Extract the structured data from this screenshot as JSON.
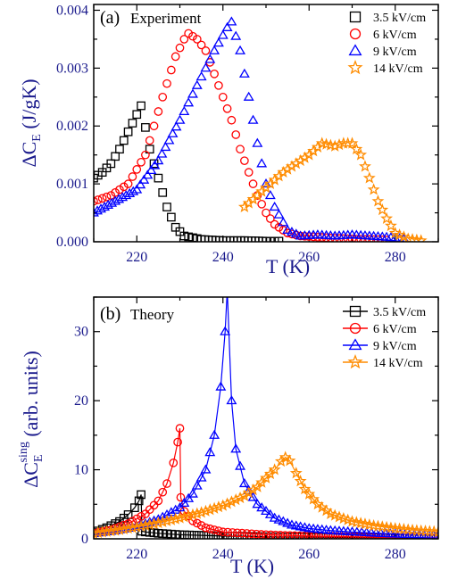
{
  "colors": {
    "axis": "#000000",
    "tick_label": "#1a1a8c",
    "axis_label": "#1a1a8c",
    "s_3_5": "#000000",
    "s_6": "#ff0000",
    "s_9": "#0000ff",
    "s_14": "#ff8c00"
  },
  "chart_data": [
    {
      "type": "scatter",
      "panel_label": "(a)",
      "title": "Experiment",
      "xlabel": "T (K)",
      "ylabel": "ΔC_E (J/gK)",
      "ylabel_main": "ΔC",
      "ylabel_sub": "E",
      "ylabel_rest": " (J/gK)",
      "xlim": [
        210,
        290
      ],
      "ylim": [
        0,
        0.0041
      ],
      "xticks": [
        220,
        240,
        260,
        280
      ],
      "xtick_labels": [
        "220",
        "240",
        "260",
        "280"
      ],
      "yticks": [
        0,
        0.001,
        0.002,
        0.003,
        0.004
      ],
      "ytick_labels": [
        "0.000",
        "0.001",
        "0.002",
        "0.003",
        "0.004"
      ],
      "grid": false,
      "legend_position": "top-right",
      "series": [
        {
          "name": "3.5 kV/cm",
          "marker": "square",
          "color": "#000000",
          "x": [
            210,
            212,
            214,
            216,
            218,
            220,
            221,
            223,
            225,
            227,
            229,
            231,
            235,
            240,
            245,
            250,
            253
          ],
          "y": [
            0.0011,
            0.0012,
            0.00135,
            0.0016,
            0.0019,
            0.0022,
            0.00235,
            0.0016,
            0.0011,
            0.0006,
            0.00025,
            0.0001,
            4e-05,
            2e-05,
            2e-05,
            1e-05,
            1e-05
          ]
        },
        {
          "name": "6 kV/cm",
          "marker": "circle",
          "color": "#ff0000",
          "x": [
            210,
            214,
            218,
            222,
            226,
            229,
            231,
            232,
            234,
            236,
            238,
            240,
            242,
            244,
            246,
            248,
            250,
            252,
            255,
            258,
            262,
            266,
            270,
            274,
            278
          ],
          "y": [
            0.0007,
            0.0008,
            0.001,
            0.0015,
            0.0025,
            0.0032,
            0.0035,
            0.0036,
            0.0035,
            0.0033,
            0.0029,
            0.0025,
            0.0021,
            0.0016,
            0.0012,
            0.0008,
            0.0005,
            0.0003,
            0.00015,
            0.0001,
            8e-05,
            6e-05,
            5e-05,
            4e-05,
            3e-05
          ]
        },
        {
          "name": "9 kV/cm",
          "marker": "triangle",
          "color": "#0000ff",
          "x": [
            210,
            215,
            220,
            225,
            230,
            234,
            238,
            241,
            242,
            244,
            246,
            248,
            250,
            252,
            255,
            258,
            262,
            266,
            270,
            274,
            278,
            282
          ],
          "y": [
            0.0005,
            0.0007,
            0.0009,
            0.0014,
            0.0021,
            0.0027,
            0.0033,
            0.0037,
            0.0038,
            0.0033,
            0.0025,
            0.0017,
            0.001,
            0.0006,
            0.0002,
            0.0001,
            0.00012,
            0.0001,
            0.00012,
            0.0001,
            8e-05,
            5e-05
          ]
        },
        {
          "name": "14 kV/cm",
          "marker": "star",
          "color": "#ff8c00",
          "x": [
            245,
            248,
            251,
            254,
            257,
            260,
            263,
            266,
            268,
            270,
            272,
            274,
            276,
            278,
            280,
            283,
            286
          ],
          "y": [
            0.0006,
            0.0008,
            0.001,
            0.0012,
            0.00135,
            0.0015,
            0.0017,
            0.00165,
            0.0017,
            0.0017,
            0.0015,
            0.0011,
            0.0007,
            0.0004,
            0.00015,
            5e-05,
            2e-05
          ]
        }
      ]
    },
    {
      "type": "line",
      "panel_label": "(b)",
      "title": "Theory",
      "xlabel": "T (K)",
      "ylabel": "ΔC_E^sing (arb. units)",
      "ylabel_main": "ΔC",
      "ylabel_sub": "E",
      "ylabel_sup": "sing",
      "ylabel_rest": " (arb. units)",
      "xlim": [
        210,
        290
      ],
      "ylim": [
        0,
        35
      ],
      "xticks": [
        220,
        240,
        260,
        280
      ],
      "xtick_labels": [
        "220",
        "240",
        "260",
        "280"
      ],
      "yticks": [
        0,
        10,
        20,
        30
      ],
      "ytick_labels": [
        "0",
        "10",
        "20",
        "30"
      ],
      "grid": false,
      "legend_position": "top-right",
      "series": [
        {
          "name": "3.5 kV/cm",
          "marker": "square",
          "color": "#000000",
          "x": [
            210,
            213,
            216,
            218,
            219.5,
            220.5,
            221,
            221.2,
            222,
            225,
            230,
            240,
            250,
            260,
            270,
            280,
            290
          ],
          "y": [
            0.9,
            1.6,
            2.5,
            3.5,
            4.5,
            5.5,
            6.4,
            1.1,
            1.0,
            0.8,
            0.6,
            0.4,
            0.3,
            0.25,
            0.2,
            0.15,
            0.1
          ]
        },
        {
          "name": "6 kV/cm",
          "marker": "circle",
          "color": "#ff0000",
          "x": [
            210,
            214,
            218,
            222,
            225,
            227,
            228.5,
            229.5,
            230,
            230.2,
            231,
            233,
            236,
            240,
            250,
            260,
            270,
            280,
            290
          ],
          "y": [
            0.8,
            1.3,
            2.2,
            3.6,
            5.5,
            8.0,
            11.0,
            14.0,
            16.0,
            6.0,
            4.0,
            2.6,
            1.6,
            1.0,
            0.6,
            0.4,
            0.3,
            0.2,
            0.15
          ]
        },
        {
          "name": "9 kV/cm",
          "marker": "triangle",
          "color": "#0000ff",
          "x": [
            210,
            215,
            220,
            225,
            230,
            233,
            236,
            238,
            239.5,
            240.5,
            241,
            242,
            243,
            245,
            248,
            252,
            256,
            260,
            265,
            270,
            280,
            290
          ],
          "y": [
            0.8,
            1.2,
            1.8,
            2.8,
            4.5,
            6.5,
            10.0,
            15.0,
            22.0,
            30.0,
            36.0,
            20.0,
            13.0,
            8.0,
            5.0,
            3.0,
            2.0,
            1.5,
            1.2,
            1.0,
            0.7,
            0.5
          ]
        },
        {
          "name": "14 kV/cm",
          "marker": "star",
          "color": "#ff8c00",
          "x": [
            210,
            215,
            220,
            225,
            230,
            235,
            240,
            245,
            248,
            250,
            252,
            253.5,
            254.5,
            255.5,
            257,
            259,
            262,
            265,
            270,
            275,
            280,
            285,
            290
          ],
          "y": [
            0.8,
            1.2,
            1.7,
            2.3,
            3.0,
            3.8,
            4.8,
            6.2,
            7.5,
            8.8,
            10.0,
            11.2,
            11.8,
            11.3,
            9.5,
            7.2,
            5.0,
            3.6,
            2.5,
            1.9,
            1.5,
            1.2,
            1.0
          ]
        }
      ]
    }
  ]
}
